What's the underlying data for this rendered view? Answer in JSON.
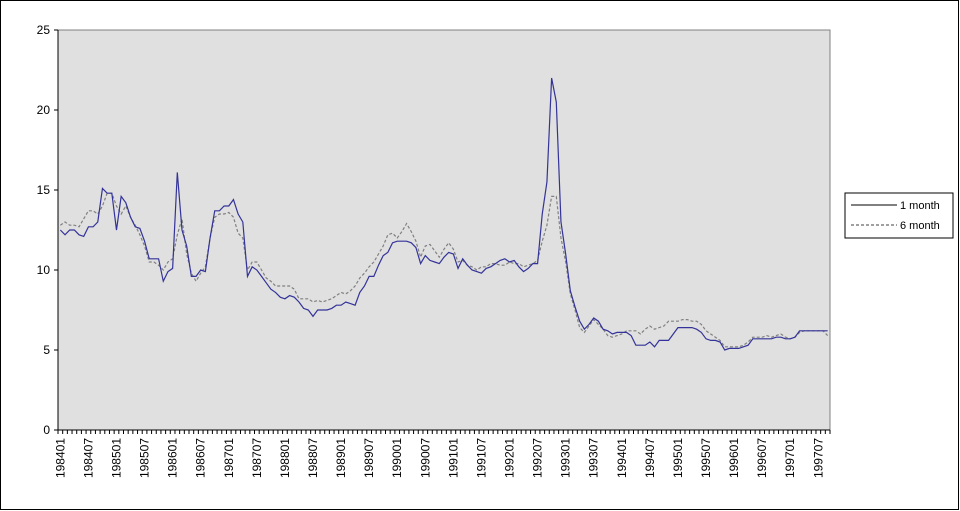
{
  "chart_data": {
    "type": "line",
    "categories": [
      "198401",
      null,
      null,
      null,
      null,
      null,
      "198407",
      null,
      null,
      null,
      null,
      null,
      "198501",
      null,
      null,
      null,
      null,
      null,
      "198507",
      null,
      null,
      null,
      null,
      null,
      "198601",
      null,
      null,
      null,
      null,
      null,
      "198607",
      null,
      null,
      null,
      null,
      null,
      "198701",
      null,
      null,
      null,
      null,
      null,
      "198707",
      null,
      null,
      null,
      null,
      null,
      "198801",
      null,
      null,
      null,
      null,
      null,
      "198807",
      null,
      null,
      null,
      null,
      null,
      "198901",
      null,
      null,
      null,
      null,
      null,
      "198907",
      null,
      null,
      null,
      null,
      null,
      "199001",
      null,
      null,
      null,
      null,
      null,
      "199007",
      null,
      null,
      null,
      null,
      null,
      "199101",
      null,
      null,
      null,
      null,
      null,
      "199107",
      null,
      null,
      null,
      null,
      null,
      "199201",
      null,
      null,
      null,
      null,
      null,
      "199207",
      null,
      null,
      null,
      null,
      null,
      "199301",
      null,
      null,
      null,
      null,
      null,
      "199307",
      null,
      null,
      null,
      null,
      null,
      "199401",
      null,
      null,
      null,
      null,
      null,
      "199407",
      null,
      null,
      null,
      null,
      null,
      "199501",
      null,
      null,
      null,
      null,
      null,
      "199507",
      null,
      null,
      null,
      null,
      null,
      "199601",
      null,
      null,
      null,
      null,
      null,
      "199607",
      null,
      null,
      null,
      null,
      null,
      "199701",
      null,
      null,
      null,
      null,
      null,
      "199707",
      null,
      null
    ],
    "series": [
      {
        "name": "1 month",
        "color": "#333399",
        "line_style": "solid",
        "legend_color": "#000000",
        "values": [
          12.5,
          12.2,
          12.5,
          12.5,
          12.2,
          12.1,
          12.7,
          12.7,
          13.0,
          15.1,
          14.8,
          14.8,
          12.5,
          14.6,
          14.2,
          13.3,
          12.7,
          12.6,
          11.8,
          10.7,
          10.7,
          10.7,
          9.3,
          9.9,
          10.1,
          16.1,
          12.5,
          11.5,
          9.6,
          9.6,
          10.0,
          9.9,
          12.0,
          13.7,
          13.7,
          14.0,
          14.0,
          14.4,
          13.5,
          13.0,
          9.6,
          10.2,
          10.0,
          9.6,
          9.2,
          8.8,
          8.6,
          8.3,
          8.2,
          8.4,
          8.3,
          8.0,
          7.6,
          7.5,
          7.1,
          7.5,
          7.5,
          7.5,
          7.6,
          7.8,
          7.8,
          8.0,
          7.9,
          7.8,
          8.6,
          9.0,
          9.6,
          9.6,
          10.3,
          10.9,
          11.1,
          11.7,
          11.8,
          11.8,
          11.8,
          11.7,
          11.4,
          10.4,
          10.9,
          10.6,
          10.5,
          10.4,
          10.8,
          11.1,
          11.0,
          10.1,
          10.7,
          10.3,
          10.0,
          9.9,
          9.8,
          10.1,
          10.2,
          10.4,
          10.6,
          10.7,
          10.5,
          10.6,
          10.2,
          9.9,
          10.1,
          10.4,
          10.4,
          13.5,
          15.5,
          22.0,
          20.5,
          13.0,
          11.0,
          8.7,
          7.7,
          6.8,
          6.3,
          6.6,
          7.0,
          6.8,
          6.3,
          6.2,
          6.0,
          6.1,
          6.1,
          6.1,
          5.9,
          5.3,
          5.3,
          5.3,
          5.5,
          5.2,
          5.6,
          5.6,
          5.6,
          6.0,
          6.4,
          6.4,
          6.4,
          6.4,
          6.3,
          6.1,
          5.7,
          5.6,
          5.6,
          5.5,
          5.0,
          5.1,
          5.1,
          5.1,
          5.2,
          5.3,
          5.7,
          5.7,
          5.7,
          5.7,
          5.7,
          5.8,
          5.8,
          5.7,
          5.7,
          5.8,
          6.2,
          6.2,
          6.2,
          6.2,
          6.2,
          6.2,
          6.2
        ]
      },
      {
        "name": "6 month",
        "color": "#808080",
        "line_style": "dashed",
        "legend_color": "#404040",
        "values": [
          12.8,
          13.0,
          12.8,
          12.8,
          12.7,
          13.2,
          13.7,
          13.7,
          13.5,
          14.0,
          14.8,
          14.8,
          14.0,
          13.5,
          14.0,
          13.3,
          12.8,
          12.2,
          11.5,
          10.5,
          10.5,
          10.3,
          10.0,
          10.5,
          10.7,
          12.2,
          13.2,
          11.0,
          9.8,
          9.3,
          9.8,
          10.2,
          12.0,
          13.3,
          13.5,
          13.5,
          13.6,
          13.3,
          12.3,
          12.0,
          10.0,
          10.5,
          10.5,
          10.0,
          9.5,
          9.3,
          9.0,
          9.0,
          9.0,
          9.0,
          8.8,
          8.2,
          8.2,
          8.2,
          8.0,
          8.1,
          8.0,
          8.1,
          8.2,
          8.4,
          8.6,
          8.5,
          8.7,
          9.0,
          9.5,
          9.8,
          10.2,
          10.5,
          11.0,
          11.5,
          12.2,
          12.3,
          12.0,
          12.4,
          12.9,
          12.4,
          11.8,
          10.8,
          11.5,
          11.6,
          11.2,
          10.8,
          11.3,
          11.7,
          11.3,
          10.5,
          10.6,
          10.3,
          10.2,
          10.0,
          10.2,
          10.2,
          10.4,
          10.4,
          10.3,
          10.3,
          10.5,
          10.4,
          10.4,
          10.2,
          10.3,
          10.4,
          10.6,
          11.8,
          12.8,
          14.6,
          14.6,
          12.0,
          10.5,
          8.5,
          7.5,
          6.4,
          6.1,
          6.5,
          6.9,
          6.6,
          6.3,
          5.9,
          5.8,
          5.9,
          6.0,
          6.2,
          6.2,
          6.2,
          6.0,
          6.3,
          6.5,
          6.3,
          6.4,
          6.5,
          6.8,
          6.8,
          6.8,
          6.9,
          6.9,
          6.8,
          6.8,
          6.6,
          6.2,
          6.0,
          5.8,
          5.6,
          5.2,
          5.2,
          5.2,
          5.2,
          5.3,
          5.5,
          5.8,
          5.8,
          5.8,
          5.9,
          5.8,
          5.9,
          6.0,
          5.8,
          5.7,
          5.8,
          6.1,
          6.2,
          6.2,
          6.2,
          6.2,
          6.2,
          5.9
        ]
      }
    ],
    "ylim": [
      0,
      25
    ],
    "yticks": [
      0,
      5,
      10,
      15,
      20,
      25
    ],
    "grid": false,
    "plot_background": "#e0e0e0",
    "legend": "right"
  }
}
